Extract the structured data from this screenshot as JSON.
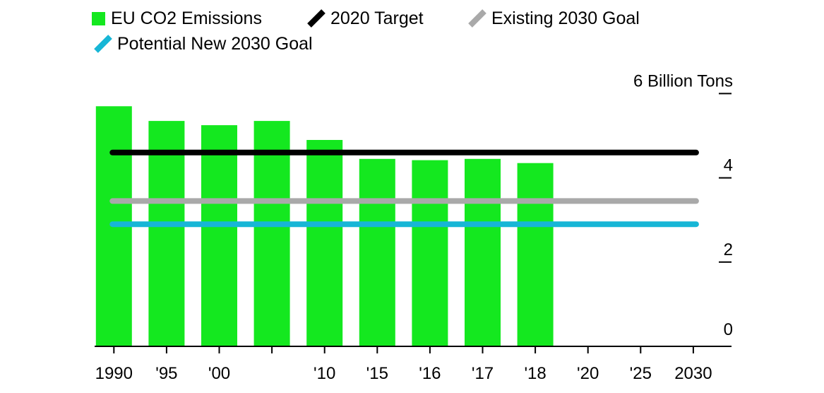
{
  "legend": {
    "items": [
      {
        "label": "EU CO2 Emissions",
        "color": "#14e81f",
        "shape": "square"
      },
      {
        "label": "2020 Target",
        "color": "#000000",
        "shape": "slash"
      },
      {
        "label": "Existing 2030 Goal",
        "color": "#a9a9a9",
        "shape": "slash"
      },
      {
        "label": "Potential New 2030 Goal",
        "color": "#17b6d6",
        "shape": "slash"
      }
    ]
  },
  "chart_data": {
    "type": "bar",
    "unit_label": "6 Billion Tons",
    "categories": [
      "1990",
      "'95",
      "'00",
      "",
      "'10",
      "'15",
      "'16",
      "'17",
      "'18",
      "'20",
      "'25",
      "2030"
    ],
    "series": [
      {
        "name": "EU CO2 Emissions",
        "color": "#14e81f",
        "values": [
          5.7,
          5.35,
          5.25,
          5.35,
          4.9,
          4.45,
          4.42,
          4.45,
          4.35,
          null,
          null,
          null
        ]
      }
    ],
    "reference_lines": [
      {
        "name": "2020 Target",
        "value": 4.6,
        "color": "#000000"
      },
      {
        "name": "Existing 2030 Goal",
        "value": 3.45,
        "color": "#a9a9a9"
      },
      {
        "name": "Potential New 2030 Goal",
        "value": 2.9,
        "color": "#17b6d6"
      }
    ],
    "y_ticks": [
      {
        "value": 0,
        "label": "0"
      },
      {
        "value": 2,
        "label": "2"
      },
      {
        "value": 4,
        "label": "4"
      },
      {
        "value": 6,
        "label": "6 Billion Tons"
      }
    ],
    "ylim": [
      0,
      6
    ],
    "grid": false,
    "legend_position": "top-left"
  }
}
